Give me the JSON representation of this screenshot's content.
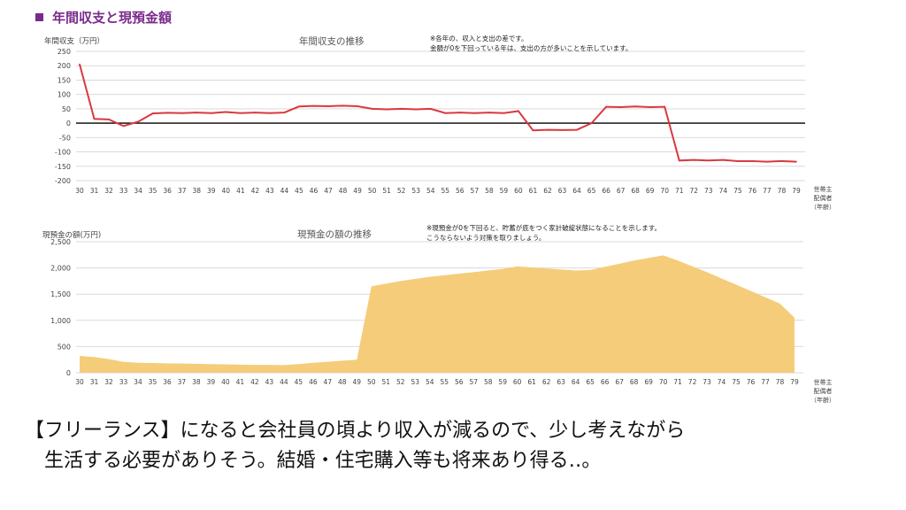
{
  "page_title": "年間収支と現預金額",
  "chart_data": [
    {
      "type": "line",
      "title": "年間収支の推移",
      "ylabel": "年間収支（万円）",
      "note_lines": [
        "※各年の、収入と支出の差です。",
        "金額が0を下回っている年は、支出の方が多いことを示しています。"
      ],
      "xlabel_lines": [
        "世帯主",
        "配偶者",
        "（年齢）"
      ],
      "ylim": [
        -200,
        250
      ],
      "yticks": [
        -200,
        -150,
        -100,
        -50,
        0,
        50,
        100,
        150,
        200,
        250
      ],
      "ytick_labels": [
        "-200",
        "-150",
        "-100",
        "-50",
        "0",
        "50",
        "100",
        "150",
        "200",
        "250"
      ],
      "grid": true,
      "colors": {
        "series": "#d9393e",
        "zero_line": "#000000"
      },
      "x": [
        "30",
        "31",
        "32",
        "33",
        "34",
        "35",
        "36",
        "37",
        "38",
        "39",
        "40",
        "41",
        "42",
        "43",
        "44",
        "45",
        "46",
        "47",
        "48",
        "49",
        "50",
        "51",
        "52",
        "53",
        "54",
        "55",
        "56",
        "57",
        "58",
        "59",
        "60",
        "61",
        "62",
        "63",
        "64",
        "65",
        "66",
        "67",
        "68",
        "69",
        "70",
        "71",
        "72",
        "73",
        "74",
        "75",
        "76",
        "77",
        "78",
        "79"
      ],
      "series": [
        {
          "values": [
            205,
            15,
            13,
            -10,
            5,
            34,
            36,
            35,
            37,
            35,
            39,
            35,
            37,
            35,
            37,
            58,
            60,
            59,
            61,
            59,
            50,
            48,
            50,
            48,
            50,
            35,
            37,
            35,
            37,
            35,
            42,
            -25,
            -23,
            -24,
            -23,
            0,
            57,
            56,
            58,
            56,
            57,
            -130,
            -128,
            -130,
            -128,
            -132,
            -132,
            -134,
            -132,
            -134
          ]
        }
      ]
    },
    {
      "type": "area",
      "title": "現預金の額の推移",
      "ylabel": "現預金の額(万円)",
      "note_lines": [
        "※現預金が0を下回ると、貯蓄が底をつく家計破綻状態になることを示します。",
        "こうならないよう対策を取りましょう。"
      ],
      "xlabel_lines": [
        "世帯主",
        "配偶者",
        "（年齢）"
      ],
      "ylim": [
        0,
        2500
      ],
      "yticks": [
        0,
        500,
        1000,
        1500,
        2000,
        2500
      ],
      "ytick_labels": [
        "0",
        "500",
        "1,000",
        "1,500",
        "2,000",
        "2,500"
      ],
      "grid": true,
      "colors": {
        "fill": "#f5cc79"
      },
      "x": [
        "30",
        "31",
        "32",
        "33",
        "34",
        "35",
        "36",
        "37",
        "38",
        "39",
        "40",
        "41",
        "42",
        "43",
        "44",
        "45",
        "46",
        "47",
        "48",
        "49",
        "50",
        "51",
        "52",
        "53",
        "54",
        "55",
        "56",
        "57",
        "58",
        "59",
        "60",
        "61",
        "62",
        "63",
        "64",
        "65",
        "66",
        "67",
        "68",
        "69",
        "70",
        "71",
        "72",
        "73",
        "74",
        "75",
        "76",
        "77",
        "78",
        "79"
      ],
      "series": [
        {
          "values": [
            320,
            300,
            260,
            210,
            190,
            185,
            180,
            175,
            170,
            165,
            160,
            155,
            150,
            150,
            145,
            165,
            190,
            210,
            230,
            250,
            1650,
            1700,
            1750,
            1790,
            1830,
            1860,
            1890,
            1920,
            1950,
            1980,
            2030,
            2010,
            1990,
            1970,
            1950,
            1960,
            2020,
            2080,
            2140,
            2190,
            2240,
            2140,
            2030,
            1920,
            1800,
            1680,
            1560,
            1440,
            1320,
            1050
          ]
        }
      ]
    }
  ],
  "caption": {
    "line1": "【フリーランス】になると会社員の頃より収入が減るので、少し考えながら",
    "line2": "生活する必要がありそう。結婚・住宅購入等も将来あり得る‥。"
  }
}
